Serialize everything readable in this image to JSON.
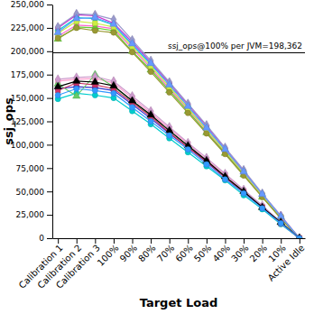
{
  "chart_data": {
    "type": "line",
    "x_label": "Target Load",
    "y_label": "ssj_ops",
    "categories": [
      "Calibration 1",
      "Calibration 2",
      "Calibration 3",
      "100%",
      "90%",
      "80%",
      "70%",
      "60%",
      "50%",
      "40%",
      "30%",
      "20%",
      "10%",
      "Active Idle"
    ],
    "ylim": [
      0,
      250000
    ],
    "yticks": [
      0,
      {
        "value": 25000,
        "label": "25,000"
      },
      {
        "value": 50000,
        "label": "50,000"
      },
      {
        "value": 75000,
        "label": "75,000"
      },
      {
        "value": 100000,
        "label": "100,000"
      },
      {
        "value": 125000,
        "label": "125,000"
      },
      {
        "value": 150000,
        "label": "150,000"
      },
      {
        "value": 175000,
        "label": "175,000"
      },
      {
        "value": 200000,
        "label": "200,000"
      },
      {
        "value": 225000,
        "label": "225,000"
      },
      {
        "value": 250000,
        "label": "250,000"
      }
    ],
    "grid": false,
    "reference_line": {
      "value": 198362,
      "label": "ssj_ops@100% per JVM=198,362"
    },
    "series": [
      {
        "color": "#00cccc",
        "marker": "circle",
        "values": [
          222000,
          236000,
          235000,
          228000,
          207000,
          186000,
          164000,
          141000,
          118000,
          94000,
          71000,
          46000,
          23000,
          0
        ]
      },
      {
        "color": "#ff66cc",
        "marker": "square",
        "values": [
          216000,
          228000,
          227000,
          224000,
          203000,
          182000,
          160000,
          138000,
          115000,
          92000,
          69000,
          45000,
          22000,
          0
        ]
      },
      {
        "color": "#cc33cc",
        "marker": "diamond",
        "values": [
          225000,
          239000,
          238000,
          230000,
          210000,
          188000,
          166000,
          143000,
          120000,
          96000,
          72000,
          47000,
          24000,
          0
        ]
      },
      {
        "color": "#66cc33",
        "marker": "triangle",
        "values": [
          213000,
          226000,
          225000,
          222000,
          200000,
          180000,
          158000,
          136000,
          113000,
          91000,
          68000,
          44000,
          22000,
          0
        ]
      },
      {
        "color": "#ccee44",
        "marker": "square",
        "values": [
          219000,
          232000,
          230000,
          226000,
          205000,
          184000,
          162000,
          139000,
          116000,
          93000,
          70000,
          46000,
          23000,
          0
        ]
      },
      {
        "color": "#9999cc",
        "marker": "diamond",
        "values": [
          226000,
          240000,
          239000,
          234000,
          212000,
          190000,
          167000,
          144000,
          121000,
          97000,
          73000,
          48000,
          24000,
          0
        ]
      },
      {
        "color": "#999933",
        "marker": "circle",
        "values": [
          214000,
          225000,
          222000,
          220000,
          199000,
          178000,
          156000,
          134000,
          112000,
          90000,
          67000,
          44000,
          21000,
          0
        ]
      },
      {
        "color": "#6699ff",
        "marker": "triangle",
        "values": [
          220000,
          235000,
          236000,
          229000,
          208000,
          187000,
          164000,
          141000,
          118000,
          95000,
          71000,
          47000,
          23000,
          0
        ]
      },
      {
        "color": "#3333cc",
        "marker": "circle",
        "values": [
          160000,
          162000,
          161000,
          158000,
          143000,
          128000,
          112000,
          97000,
          81000,
          65000,
          49000,
          33000,
          16000,
          0
        ]
      },
      {
        "color": "#ff99cc",
        "marker": "square",
        "values": [
          168000,
          170000,
          171000,
          166000,
          150000,
          134000,
          117000,
          101000,
          84000,
          68000,
          51000,
          34000,
          17000,
          0
        ]
      },
      {
        "color": "#00cccc",
        "marker": "circle",
        "values": [
          149000,
          155000,
          153000,
          150000,
          136000,
          122000,
          107000,
          92000,
          77000,
          62000,
          46000,
          31000,
          15000,
          0
        ]
      },
      {
        "color": "#66cc66",
        "marker": "triangle",
        "values": [
          165000,
          152000,
          175000,
          162000,
          147000,
          131000,
          115000,
          99000,
          83000,
          66000,
          50000,
          33000,
          17000,
          0
        ]
      },
      {
        "color": "#cc99cc",
        "marker": "diamond",
        "values": [
          170000,
          172000,
          173000,
          168000,
          152000,
          136000,
          119000,
          102000,
          86000,
          69000,
          52000,
          35000,
          17000,
          0
        ]
      },
      {
        "color": "#cc3366",
        "marker": "square",
        "values": [
          158000,
          166000,
          164000,
          160000,
          145000,
          130000,
          113000,
          97000,
          82000,
          65000,
          49000,
          33000,
          16000,
          0
        ]
      },
      {
        "color": "#000000",
        "marker": "triangle",
        "values": [
          162000,
          168000,
          167000,
          163000,
          147000,
          132000,
          115000,
          99000,
          83000,
          66000,
          50000,
          33000,
          17000,
          0
        ]
      },
      {
        "color": "#3399ff",
        "marker": "circle",
        "values": [
          153000,
          160000,
          158000,
          155000,
          140000,
          125000,
          110000,
          95000,
          79000,
          63000,
          48000,
          32000,
          16000,
          0
        ]
      }
    ]
  }
}
